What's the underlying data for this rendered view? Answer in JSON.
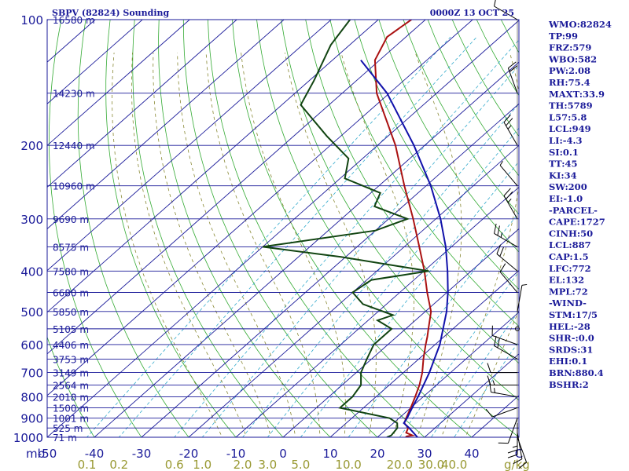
{
  "chart_data": {
    "type": "line",
    "title": "SBPV (82824) Sounding",
    "valid_time": "0000Z 13 OCT 25",
    "x_axis_unit": "mb",
    "x_ticks": [
      "-50",
      "-40",
      "-30",
      "-20",
      "-10",
      "0",
      "10",
      "20",
      "30",
      "40",
      "C"
    ],
    "mixing_ratio_unit": "g/kg",
    "mixing_ratio_ticks": [
      "0.1",
      "0.2",
      "0.6",
      "1.0",
      "2.0",
      "3.0",
      "5.0",
      "10.0",
      "20.0",
      "30.0",
      "40.0"
    ],
    "pressure_ticks": [
      "100",
      "200",
      "300",
      "400",
      "500",
      "600",
      "700",
      "800",
      "900",
      "1000"
    ],
    "height_labels": [
      {
        "p": 100,
        "label": "16580 m"
      },
      {
        "p": 150,
        "label": "14230 m"
      },
      {
        "p": 200,
        "label": "12440 m"
      },
      {
        "p": 250,
        "label": "10960 m"
      },
      {
        "p": 300,
        "label": "9690 m"
      },
      {
        "p": 350,
        "label": "8575 m"
      },
      {
        "p": 400,
        "label": "7580 m"
      },
      {
        "p": 450,
        "label": "6680 m"
      },
      {
        "p": 500,
        "label": "5850 m"
      },
      {
        "p": 550,
        "label": "5105 m"
      },
      {
        "p": 600,
        "label": "4406 m"
      },
      {
        "p": 650,
        "label": "3753 m"
      },
      {
        "p": 700,
        "label": "3149 m"
      },
      {
        "p": 750,
        "label": "2564 m"
      },
      {
        "p": 800,
        "label": "2018 m"
      },
      {
        "p": 850,
        "label": "1500 m"
      },
      {
        "p": 900,
        "label": "1001 m"
      },
      {
        "p": 950,
        "label": "525 m"
      },
      {
        "p": 1000,
        "label": "71 m"
      }
    ],
    "series": [
      {
        "name": "temperature",
        "color": "#aa1111",
        "points": [
          [
            1000,
            26
          ],
          [
            995,
            26
          ],
          [
            990,
            27
          ],
          [
            975,
            25
          ],
          [
            950,
            24.3
          ],
          [
            925,
            22.3
          ],
          [
            900,
            21.5
          ],
          [
            850,
            20
          ],
          [
            800,
            18.3
          ],
          [
            750,
            16.4
          ],
          [
            700,
            14
          ],
          [
            650,
            11
          ],
          [
            600,
            8
          ],
          [
            575,
            6.5
          ],
          [
            550,
            4.8
          ],
          [
            500,
            1.2
          ],
          [
            450,
            -4.2
          ],
          [
            400,
            -9.9
          ],
          [
            350,
            -16.8
          ],
          [
            300,
            -24.8
          ],
          [
            250,
            -34.6
          ],
          [
            200,
            -46.2
          ],
          [
            150,
            -62.7
          ],
          [
            125,
            -71
          ],
          [
            110,
            -74
          ],
          [
            100,
            -73
          ]
        ]
      },
      {
        "name": "dewpoint",
        "color": "#114411",
        "points": [
          [
            1000,
            22
          ],
          [
            990,
            22.5
          ],
          [
            950,
            22
          ],
          [
            925,
            20.8
          ],
          [
            900,
            18
          ],
          [
            850,
            5
          ],
          [
            800,
            5
          ],
          [
            750,
            4
          ],
          [
            700,
            1
          ],
          [
            650,
            -1
          ],
          [
            600,
            -3
          ],
          [
            550,
            -3
          ],
          [
            525,
            -8
          ],
          [
            510,
            -6
          ],
          [
            480,
            -15
          ],
          [
            450,
            -20
          ],
          [
            420,
            -19
          ],
          [
            400,
            -9
          ],
          [
            370,
            -31
          ],
          [
            350,
            -50
          ],
          [
            320,
            -30
          ],
          [
            300,
            -26
          ],
          [
            280,
            -36
          ],
          [
            260,
            -38
          ],
          [
            240,
            -49
          ],
          [
            215,
            -53
          ],
          [
            190,
            -63
          ],
          [
            160,
            -76
          ],
          [
            140,
            -79
          ],
          [
            115,
            -84
          ],
          [
            100,
            -86
          ]
        ]
      },
      {
        "name": "parcel",
        "color": "#1111aa",
        "points": [
          [
            1000,
            28.5
          ],
          [
            950,
            24.5
          ],
          [
            925,
            22.2
          ],
          [
            900,
            21.7
          ],
          [
            850,
            20.3
          ],
          [
            800,
            18.9
          ],
          [
            700,
            15.5
          ],
          [
            600,
            11
          ],
          [
            500,
            4.5
          ],
          [
            450,
            0.2
          ],
          [
            400,
            -5
          ],
          [
            350,
            -11.2
          ],
          [
            300,
            -19
          ],
          [
            250,
            -29
          ],
          [
            200,
            -42.3
          ],
          [
            150,
            -60.5
          ],
          [
            125,
            -74
          ]
        ]
      }
    ],
    "wind_barbs": [
      {
        "p": 1000,
        "dir": 160,
        "spd": 10
      },
      {
        "p": 975,
        "dir": 170,
        "spd": 10
      },
      {
        "p": 950,
        "dir": 180,
        "spd": 10
      },
      {
        "p": 925,
        "dir": 180,
        "spd": 15
      },
      {
        "p": 900,
        "dir": 200,
        "spd": 10
      },
      {
        "p": 850,
        "dir": 250,
        "spd": 10
      },
      {
        "p": 800,
        "dir": 280,
        "spd": 15
      },
      {
        "p": 750,
        "dir": 270,
        "spd": 15
      },
      {
        "p": 700,
        "dir": 270,
        "spd": 10
      },
      {
        "p": 650,
        "dir": 300,
        "spd": 20
      },
      {
        "p": 600,
        "dir": 290,
        "spd": 10
      },
      {
        "p": 550,
        "dir": 90,
        "spd": 0
      },
      {
        "p": 500,
        "dir": 10,
        "spd": 5
      },
      {
        "p": 450,
        "dir": 320,
        "spd": 10
      },
      {
        "p": 400,
        "dir": 310,
        "spd": 20
      },
      {
        "p": 350,
        "dir": 300,
        "spd": 25
      },
      {
        "p": 300,
        "dir": 330,
        "spd": 25
      },
      {
        "p": 250,
        "dir": 320,
        "spd": 5
      },
      {
        "p": 200,
        "dir": 330,
        "spd": 25
      },
      {
        "p": 150,
        "dir": 340,
        "spd": 20
      },
      {
        "p": 100,
        "dir": 300,
        "spd": 10
      }
    ]
  },
  "indices": [
    "WMO:82824",
    "TP:99",
    "FRZ:579",
    "WBO:582",
    "PW:2.08",
    "RH:75.4",
    "MAXT:33.9",
    "TH:5789",
    "L57:5.8",
    "LCL:949",
    "LI:-4.3",
    "SI:0.1",
    "TT:45",
    "KI:34",
    "SW:200",
    "EI:-1.0",
    "-PARCEL-",
    "CAPE:1727",
    "CINH:50",
    "LCL:887",
    "CAP:1.5",
    "LFC:772",
    "EL:132",
    "MPL:72",
    "-WIND-",
    "STM:17/5",
    "HEL:-28",
    "SHR-:0.0",
    "SRDS:31",
    "EHI:0.1",
    "BRN:880.4",
    "BSHR:2"
  ]
}
